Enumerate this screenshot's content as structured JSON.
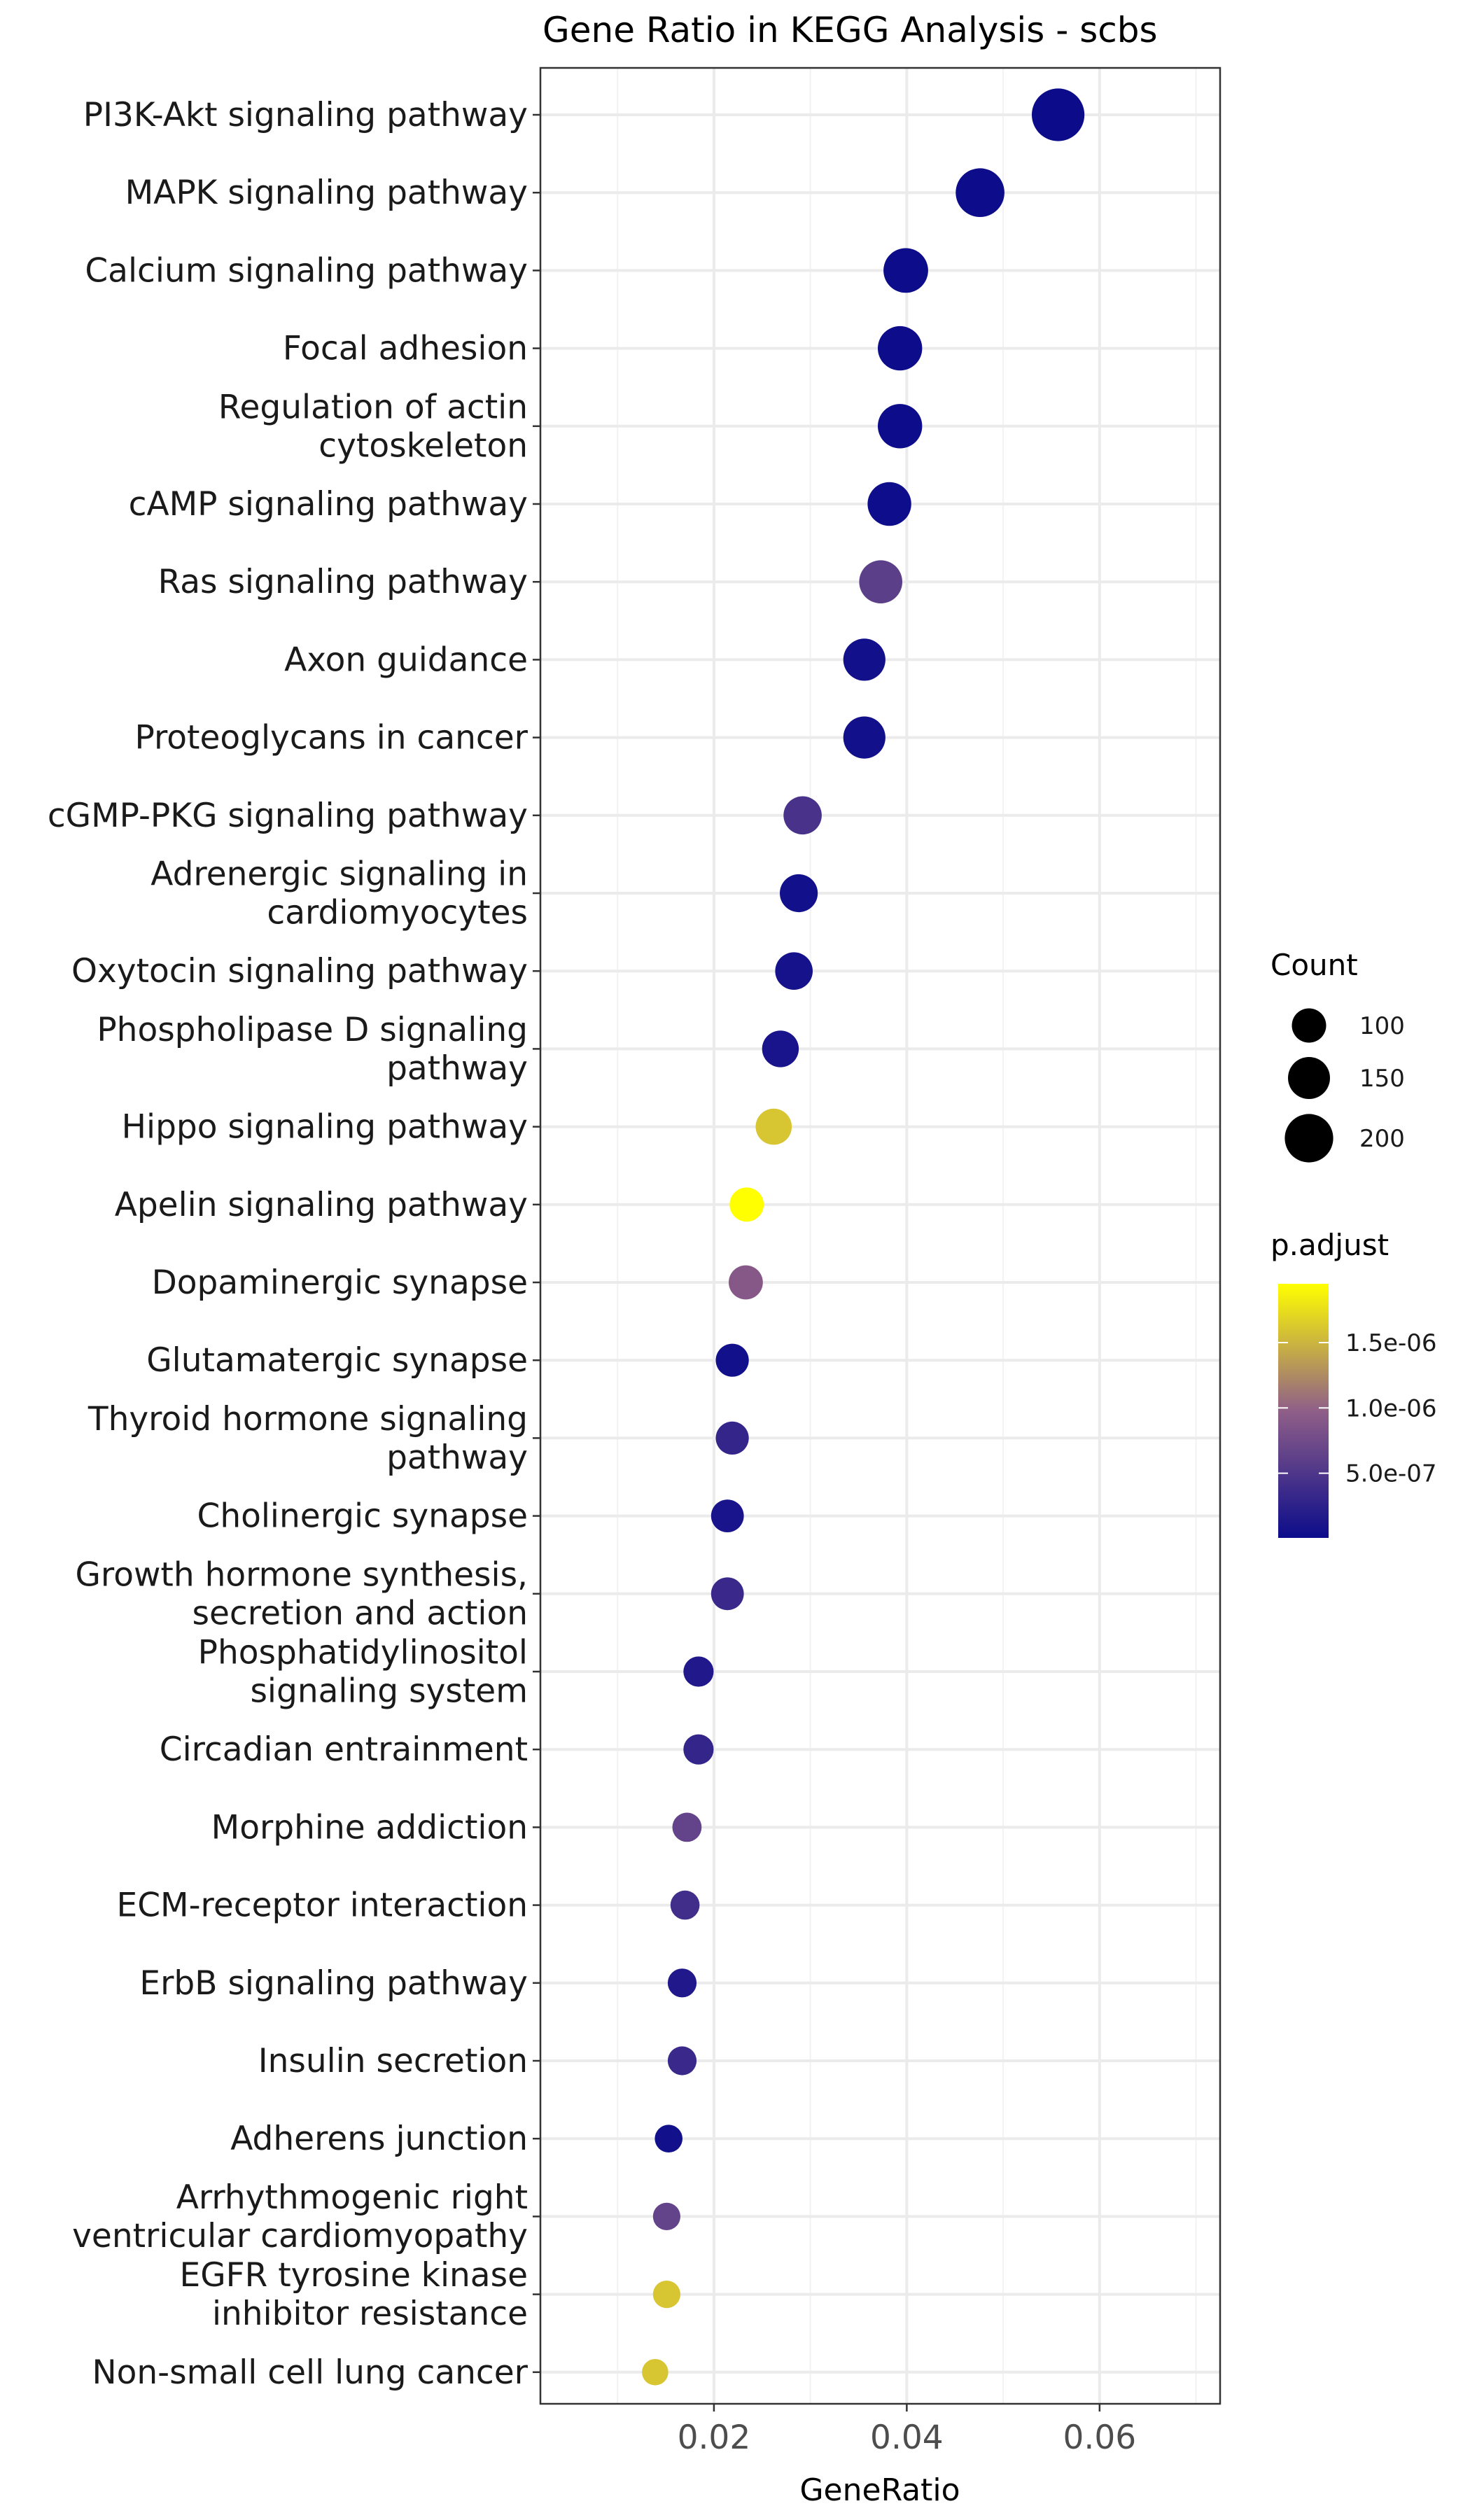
{
  "chart_data": {
    "type": "scatter",
    "title": "Gene Ratio in KEGG Analysis - scbs",
    "xlabel": "GeneRatio",
    "ylabel": "",
    "xlim": [
      0.002,
      0.0725
    ],
    "xticks": [
      0.02,
      0.04,
      0.06
    ],
    "xtick_labels": [
      "0.02",
      "0.04",
      "0.06"
    ],
    "grid": true,
    "categories": [
      [
        "PI3K-Akt signaling pathway"
      ],
      [
        "MAPK signaling pathway"
      ],
      [
        "Calcium signaling pathway"
      ],
      [
        "Focal adhesion"
      ],
      [
        "Regulation of actin",
        "cytoskeleton"
      ],
      [
        "cAMP signaling pathway"
      ],
      [
        "Ras signaling pathway"
      ],
      [
        "Axon guidance"
      ],
      [
        "Proteoglycans in cancer"
      ],
      [
        "cGMP-PKG signaling pathway"
      ],
      [
        "Adrenergic signaling in",
        "cardiomyocytes"
      ],
      [
        "Oxytocin signaling pathway"
      ],
      [
        "Phospholipase D signaling",
        "pathway"
      ],
      [
        "Hippo signaling pathway"
      ],
      [
        "Apelin signaling pathway"
      ],
      [
        "Dopaminergic synapse"
      ],
      [
        "Glutamatergic synapse"
      ],
      [
        "Thyroid hormone signaling",
        "pathway"
      ],
      [
        "Cholinergic synapse"
      ],
      [
        "Growth hormone synthesis,",
        "secretion and action"
      ],
      [
        "Phosphatidylinositol",
        "signaling system"
      ],
      [
        "Circadian entrainment"
      ],
      [
        "Morphine addiction"
      ],
      [
        "ECM-receptor interaction"
      ],
      [
        "ErbB signaling pathway"
      ],
      [
        "Insulin secretion"
      ],
      [
        "Adherens junction"
      ],
      [
        "Arrhythmogenic right",
        "ventricular cardiomyopathy"
      ],
      [
        "EGFR tyrosine kinase",
        "inhibitor resistance"
      ],
      [
        "Non-small cell lung cancer"
      ]
    ],
    "points": [
      {
        "x": 0.0557,
        "count": 235,
        "p_adjust": 5e-09
      },
      {
        "x": 0.0476,
        "count": 202,
        "p_adjust": 1e-08
      },
      {
        "x": 0.0399,
        "count": 170,
        "p_adjust": 1e-08
      },
      {
        "x": 0.0393,
        "count": 167,
        "p_adjust": 1e-08
      },
      {
        "x": 0.0393,
        "count": 167,
        "p_adjust": 1e-08
      },
      {
        "x": 0.0382,
        "count": 162,
        "p_adjust": 2e-08
      },
      {
        "x": 0.0373,
        "count": 158,
        "p_adjust": 6e-07
      },
      {
        "x": 0.0356,
        "count": 151,
        "p_adjust": 5e-08
      },
      {
        "x": 0.0356,
        "count": 151,
        "p_adjust": 5e-08
      },
      {
        "x": 0.0292,
        "count": 124,
        "p_adjust": 4.5e-07
      },
      {
        "x": 0.0288,
        "count": 122,
        "p_adjust": 5e-08
      },
      {
        "x": 0.0283,
        "count": 120,
        "p_adjust": 8e-08
      },
      {
        "x": 0.0269,
        "count": 114,
        "p_adjust": 1e-07
      },
      {
        "x": 0.0262,
        "count": 111,
        "p_adjust": 1.6e-06
      },
      {
        "x": 0.0234,
        "count": 99,
        "p_adjust": 1.95e-06
      },
      {
        "x": 0.0233,
        "count": 99,
        "p_adjust": 9e-07
      },
      {
        "x": 0.0219,
        "count": 93,
        "p_adjust": 5e-08
      },
      {
        "x": 0.0219,
        "count": 93,
        "p_adjust": 3e-07
      },
      {
        "x": 0.0214,
        "count": 91,
        "p_adjust": 1e-07
      },
      {
        "x": 0.0214,
        "count": 91,
        "p_adjust": 3.5e-07
      },
      {
        "x": 0.0184,
        "count": 78,
        "p_adjust": 1.5e-07
      },
      {
        "x": 0.0184,
        "count": 78,
        "p_adjust": 3e-07
      },
      {
        "x": 0.0172,
        "count": 73,
        "p_adjust": 6.5e-07
      },
      {
        "x": 0.017,
        "count": 72,
        "p_adjust": 4e-07
      },
      {
        "x": 0.0167,
        "count": 71,
        "p_adjust": 1.5e-07
      },
      {
        "x": 0.0167,
        "count": 71,
        "p_adjust": 3.5e-07
      },
      {
        "x": 0.0153,
        "count": 65,
        "p_adjust": 5e-08
      },
      {
        "x": 0.0151,
        "count": 64,
        "p_adjust": 6.5e-07
      },
      {
        "x": 0.0151,
        "count": 64,
        "p_adjust": 1.6e-06
      },
      {
        "x": 0.0139,
        "count": 59,
        "p_adjust": 1.6e-06
      }
    ],
    "legend": {
      "count_title": "Count",
      "count_breaks": [
        100,
        150,
        200
      ],
      "count_break_labels": [
        "100",
        "150",
        "200"
      ],
      "color_title": "p.adjust",
      "color_breaks": [
        5e-07,
        1e-06,
        1.5e-06
      ],
      "color_break_labels": [
        "5.0e-07",
        "1.0e-06",
        "1.5e-06"
      ],
      "color_range": [
        5e-09,
        1.95e-06
      ],
      "color_low": "#0c0c8b",
      "color_mid": "#8f5f88",
      "color_high": "#ffff00",
      "placement": "right"
    }
  }
}
